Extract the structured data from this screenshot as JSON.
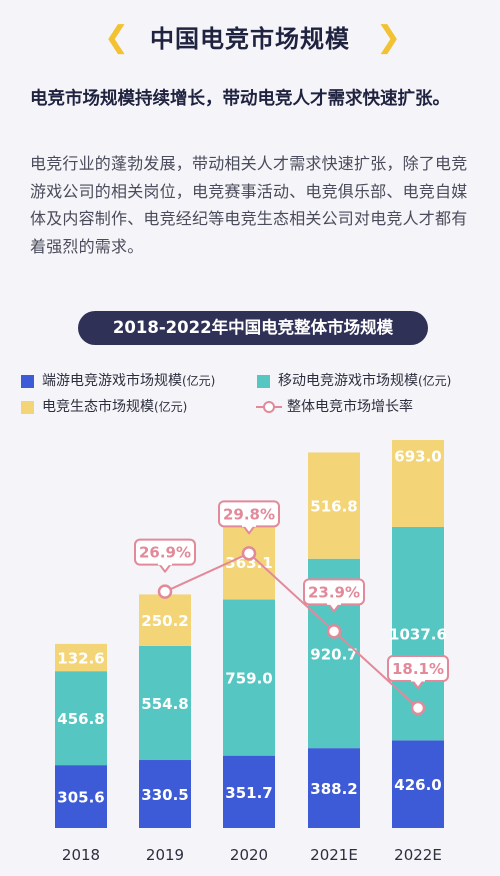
{
  "header": {
    "title": "中国电竞市场规模",
    "left_icon": "chevron-left-icon",
    "right_icon": "chevron-right-icon"
  },
  "intro": {
    "headline": "电竞市场规模持续增长，带动电竞人才需求快速扩张。",
    "body": "电竞行业的蓬勃发展，带动相关人才需求快速扩张，除了电竞游戏公司的相关岗位，电竞赛事活动、电竞俱乐部、电竞自媒体及内容制作、电竞经纪等电竞生态相关公司对电竞人才都有着强烈的需求。"
  },
  "chart_data": {
    "type": "bar",
    "title": "2018-2022年中国电竞整体市场规模",
    "categories": [
      "2018",
      "2019",
      "2020",
      "2021E",
      "2022E"
    ],
    "series": [
      {
        "name": "端游电竞游戏市场规模",
        "unit": "(亿元)",
        "color": "#3d5bd6",
        "values": [
          305.6,
          330.5,
          351.7,
          388.2,
          426.0
        ],
        "labels": [
          "305.6",
          "330.5",
          "351.7",
          "388.2",
          "426.0"
        ]
      },
      {
        "name": "移动电竞游戏市场规模",
        "unit": "(亿元)",
        "color": "#55c6c2",
        "values": [
          456.8,
          554.8,
          759.0,
          920.7,
          1037.6
        ],
        "labels": [
          "456.8",
          "554.8",
          "759.0",
          "920.7",
          "1037.6"
        ]
      },
      {
        "name": "电竞生态市场规模",
        "unit": "(亿元)",
        "color": "#f3d578",
        "values": [
          132.6,
          250.2,
          363.1,
          516.8,
          693.0
        ],
        "labels": [
          "132.6",
          "250.2",
          "363.1",
          "516.8",
          "693.0"
        ]
      }
    ],
    "growth_line": {
      "name": "整体电竞市场增长率",
      "color": "#e2899a",
      "points": [
        {
          "category": "2019",
          "value": 26.9,
          "label": "26.9%"
        },
        {
          "category": "2020",
          "value": 29.8,
          "label": "29.8%"
        },
        {
          "category": "2021E",
          "value": 23.9,
          "label": "23.9%"
        },
        {
          "category": "2022E",
          "value": 18.1,
          "label": "18.1%"
        }
      ]
    },
    "stacked": true,
    "grid": false,
    "legend_position": "top"
  }
}
